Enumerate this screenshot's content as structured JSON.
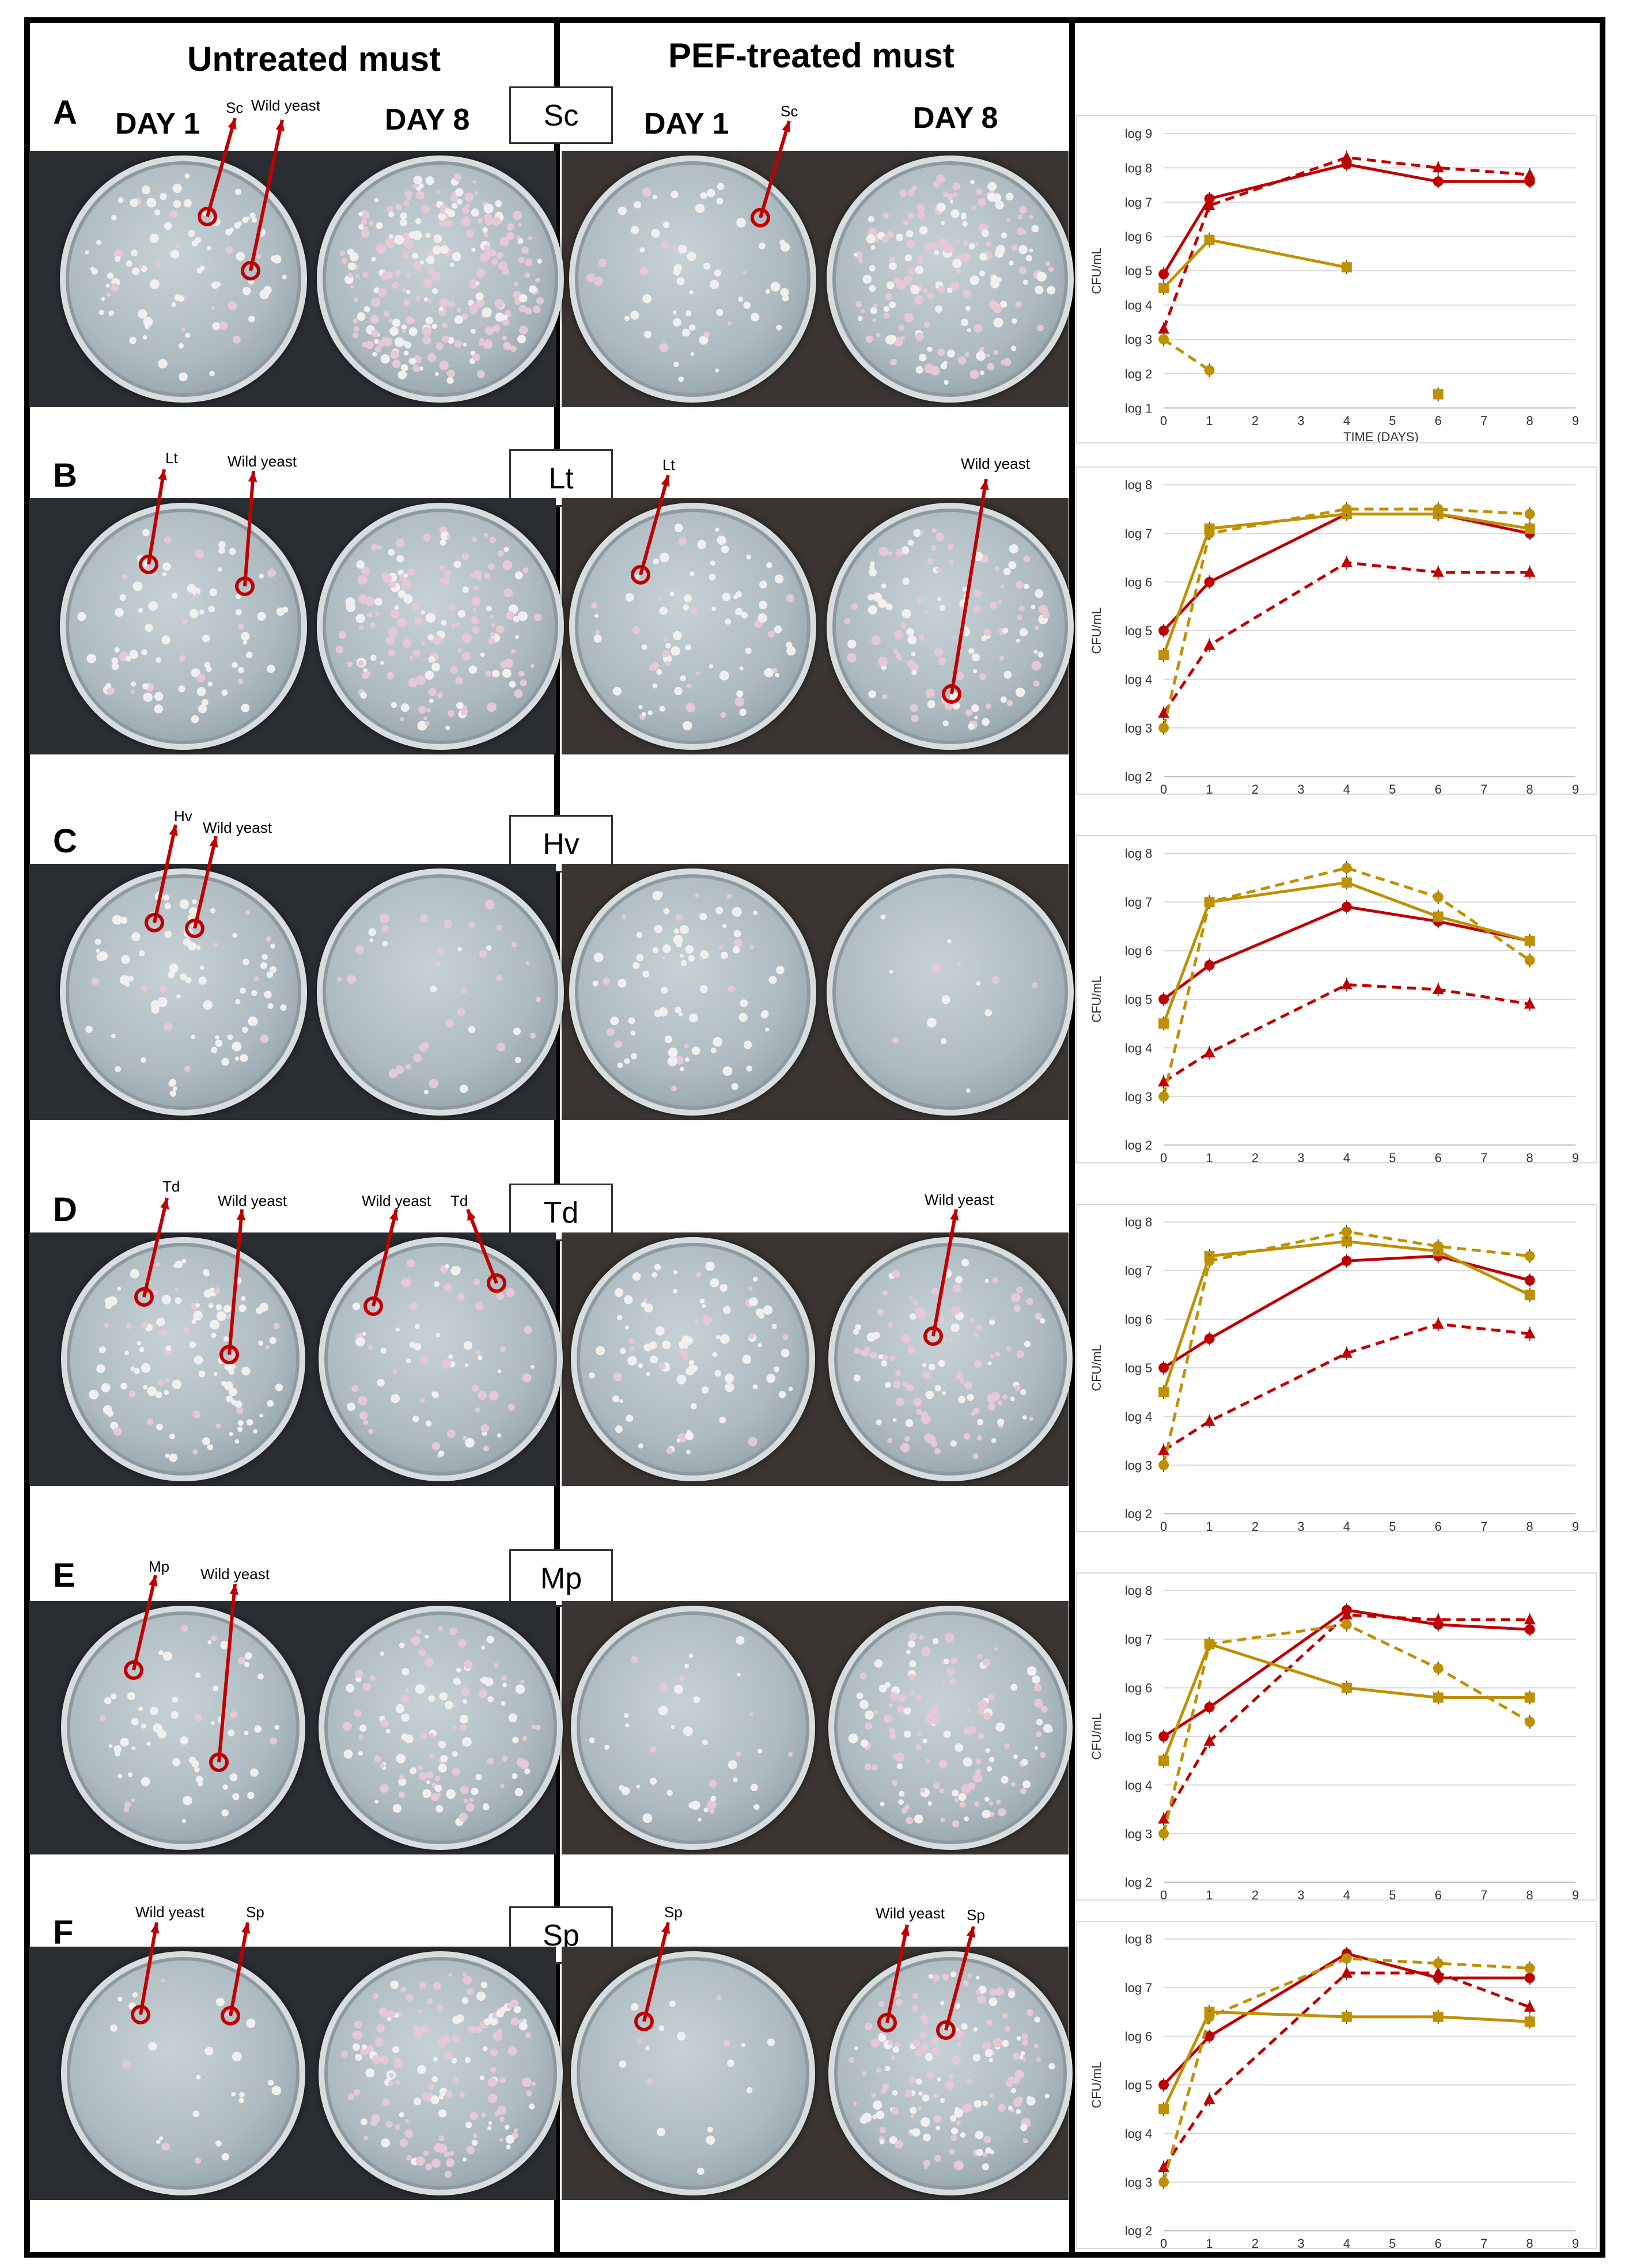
{
  "headers": {
    "untreated": "Untreated must",
    "pef": "PEF-treated must"
  },
  "day_labels": {
    "day1": "DAY 1",
    "day8": "DAY 8"
  },
  "rows": [
    {
      "letter": "A",
      "species": "Sc",
      "ann": [
        "Sc",
        "Wild yeast",
        "Sc"
      ],
      "show_days": true
    },
    {
      "letter": "B",
      "species": "Lt",
      "ann": [
        "Lt",
        "Wild yeast",
        "Lt",
        "Wild yeast"
      ]
    },
    {
      "letter": "C",
      "species": "Hv",
      "ann": [
        "Hv",
        "Wild yeast"
      ]
    },
    {
      "letter": "D",
      "species": "Td",
      "ann": [
        "Td",
        "Wild yeast",
        "Wild yeast",
        "Td",
        "Wild yeast"
      ]
    },
    {
      "letter": "E",
      "species": "Mp",
      "ann": [
        "Mp",
        "Wild yeast"
      ]
    },
    {
      "letter": "F",
      "species": "Sp",
      "ann": [
        "Wild yeast",
        "Sp",
        "Sp",
        "Wild yeast",
        "Sp"
      ]
    }
  ],
  "colors": {
    "red": "#c00000",
    "gold": "#bf9000",
    "frame": "#000000"
  },
  "chart_axis": {
    "ylabel": "CFU/mL",
    "xlabel": "TIME (DAYS)",
    "xticks": [
      "0",
      "1",
      "2",
      "3",
      "4",
      "5",
      "6",
      "7",
      "8",
      "9"
    ]
  },
  "chart_data": [
    {
      "type": "line",
      "panel": "A",
      "xlim": [
        0,
        9
      ],
      "ylim": [
        1,
        9
      ],
      "yticks": [
        "log 1",
        "log 2",
        "log 3",
        "log 4",
        "log 5",
        "log 6",
        "log 7",
        "log 8",
        "log 9"
      ],
      "series": [
        {
          "color": "#c00000",
          "style": "solid",
          "marker": "circle",
          "x": [
            0,
            1,
            4,
            6,
            8
          ],
          "y": [
            4.9,
            7.1,
            8.1,
            7.6,
            7.6
          ]
        },
        {
          "color": "#c00000",
          "style": "dashed",
          "marker": "triangle",
          "x": [
            0,
            1,
            4,
            6,
            8
          ],
          "y": [
            3.3,
            6.9,
            8.3,
            8.0,
            7.8
          ]
        },
        {
          "color": "#bf9000",
          "style": "solid",
          "marker": "square",
          "x": [
            0,
            1,
            4
          ],
          "y": [
            4.5,
            5.9,
            5.1
          ]
        },
        {
          "color": "#bf9000",
          "style": "dashed",
          "marker": "circle",
          "x": [
            0,
            1
          ],
          "y": [
            3.0,
            2.1
          ]
        },
        {
          "color": "#bf9000",
          "style": "none",
          "marker": "square",
          "x": [
            6
          ],
          "y": [
            1.4
          ]
        }
      ]
    },
    {
      "type": "line",
      "panel": "B",
      "xlim": [
        0,
        9
      ],
      "ylim": [
        2,
        8
      ],
      "yticks": [
        "log 2",
        "log 3",
        "log 4",
        "log 5",
        "log 6",
        "log 7",
        "log 8"
      ],
      "series": [
        {
          "color": "#c00000",
          "style": "solid",
          "marker": "circle",
          "x": [
            0,
            1,
            4,
            6,
            8
          ],
          "y": [
            5.0,
            6.0,
            7.4,
            7.4,
            7.0
          ]
        },
        {
          "color": "#c00000",
          "style": "dashed",
          "marker": "triangle",
          "x": [
            0,
            1,
            4,
            6,
            8
          ],
          "y": [
            3.3,
            4.7,
            6.4,
            6.2,
            6.2
          ]
        },
        {
          "color": "#bf9000",
          "style": "solid",
          "marker": "square",
          "x": [
            0,
            1,
            4,
            6,
            8
          ],
          "y": [
            4.5,
            7.1,
            7.4,
            7.4,
            7.1
          ]
        },
        {
          "color": "#bf9000",
          "style": "dashed",
          "marker": "circle",
          "x": [
            0,
            1,
            4,
            6,
            8
          ],
          "y": [
            3.0,
            7.0,
            7.5,
            7.5,
            7.4
          ]
        }
      ]
    },
    {
      "type": "line",
      "panel": "C",
      "xlim": [
        0,
        9
      ],
      "ylim": [
        2,
        8
      ],
      "yticks": [
        "log 2",
        "log 3",
        "log 4",
        "log 5",
        "log 6",
        "log 7",
        "log 8"
      ],
      "series": [
        {
          "color": "#c00000",
          "style": "solid",
          "marker": "circle",
          "x": [
            0,
            1,
            4,
            6,
            8
          ],
          "y": [
            5.0,
            5.7,
            6.9,
            6.6,
            6.2
          ]
        },
        {
          "color": "#c00000",
          "style": "dashed",
          "marker": "triangle",
          "x": [
            0,
            1,
            4,
            6,
            8
          ],
          "y": [
            3.3,
            3.9,
            5.3,
            5.2,
            4.9
          ]
        },
        {
          "color": "#bf9000",
          "style": "solid",
          "marker": "square",
          "x": [
            0,
            1,
            4,
            6,
            8
          ],
          "y": [
            4.5,
            7.0,
            7.4,
            6.7,
            6.2
          ]
        },
        {
          "color": "#bf9000",
          "style": "dashed",
          "marker": "circle",
          "x": [
            0,
            1,
            4,
            6,
            8
          ],
          "y": [
            3.0,
            7.0,
            7.7,
            7.1,
            5.8
          ]
        }
      ]
    },
    {
      "type": "line",
      "panel": "D",
      "xlim": [
        0,
        9
      ],
      "ylim": [
        2,
        8
      ],
      "yticks": [
        "log 2",
        "log 3",
        "log 4",
        "log 5",
        "log 6",
        "log 7",
        "log 8"
      ],
      "series": [
        {
          "color": "#c00000",
          "style": "solid",
          "marker": "circle",
          "x": [
            0,
            1,
            4,
            6,
            8
          ],
          "y": [
            5.0,
            5.6,
            7.2,
            7.3,
            6.8
          ]
        },
        {
          "color": "#c00000",
          "style": "dashed",
          "marker": "triangle",
          "x": [
            0,
            1,
            4,
            6,
            8
          ],
          "y": [
            3.3,
            3.9,
            5.3,
            5.9,
            5.7
          ]
        },
        {
          "color": "#bf9000",
          "style": "solid",
          "marker": "square",
          "x": [
            0,
            1,
            4,
            6,
            8
          ],
          "y": [
            4.5,
            7.3,
            7.6,
            7.4,
            6.5
          ]
        },
        {
          "color": "#bf9000",
          "style": "dashed",
          "marker": "circle",
          "x": [
            0,
            1,
            4,
            6,
            8
          ],
          "y": [
            3.0,
            7.2,
            7.8,
            7.5,
            7.3
          ]
        }
      ]
    },
    {
      "type": "line",
      "panel": "E",
      "xlim": [
        0,
        9
      ],
      "ylim": [
        2,
        8
      ],
      "yticks": [
        "log 2",
        "log 3",
        "log 4",
        "log 5",
        "log 6",
        "log 7",
        "log 8"
      ],
      "series": [
        {
          "color": "#c00000",
          "style": "solid",
          "marker": "circle",
          "x": [
            0,
            1,
            4,
            6,
            8
          ],
          "y": [
            5.0,
            5.6,
            7.6,
            7.3,
            7.2
          ]
        },
        {
          "color": "#c00000",
          "style": "dashed",
          "marker": "triangle",
          "x": [
            0,
            1,
            4,
            6,
            8
          ],
          "y": [
            3.3,
            4.9,
            7.5,
            7.4,
            7.4
          ]
        },
        {
          "color": "#bf9000",
          "style": "solid",
          "marker": "square",
          "x": [
            0,
            1,
            4,
            6,
            8
          ],
          "y": [
            4.5,
            6.9,
            6.0,
            5.8,
            5.8
          ]
        },
        {
          "color": "#bf9000",
          "style": "dashed",
          "marker": "circle",
          "x": [
            0,
            1,
            4,
            6,
            8
          ],
          "y": [
            3.0,
            6.9,
            7.3,
            6.4,
            5.3
          ]
        }
      ]
    },
    {
      "type": "line",
      "panel": "F",
      "xlim": [
        0,
        9
      ],
      "ylim": [
        2,
        8
      ],
      "yticks": [
        "log 2",
        "log 3",
        "log 4",
        "log 5",
        "log 6",
        "log 7",
        "log 8"
      ],
      "series": [
        {
          "color": "#c00000",
          "style": "solid",
          "marker": "circle",
          "x": [
            0,
            1,
            4,
            6,
            8
          ],
          "y": [
            5.0,
            6.0,
            7.7,
            7.2,
            7.2
          ]
        },
        {
          "color": "#c00000",
          "style": "dashed",
          "marker": "triangle",
          "x": [
            0,
            1,
            4,
            6,
            8
          ],
          "y": [
            3.3,
            4.7,
            7.3,
            7.3,
            6.6
          ]
        },
        {
          "color": "#bf9000",
          "style": "solid",
          "marker": "square",
          "x": [
            0,
            1,
            4,
            6,
            8
          ],
          "y": [
            4.5,
            6.5,
            6.4,
            6.4,
            6.3
          ]
        },
        {
          "color": "#bf9000",
          "style": "dashed",
          "marker": "circle",
          "x": [
            0,
            1,
            4,
            6,
            8
          ],
          "y": [
            3.0,
            6.4,
            7.6,
            7.5,
            7.4
          ]
        }
      ]
    }
  ]
}
